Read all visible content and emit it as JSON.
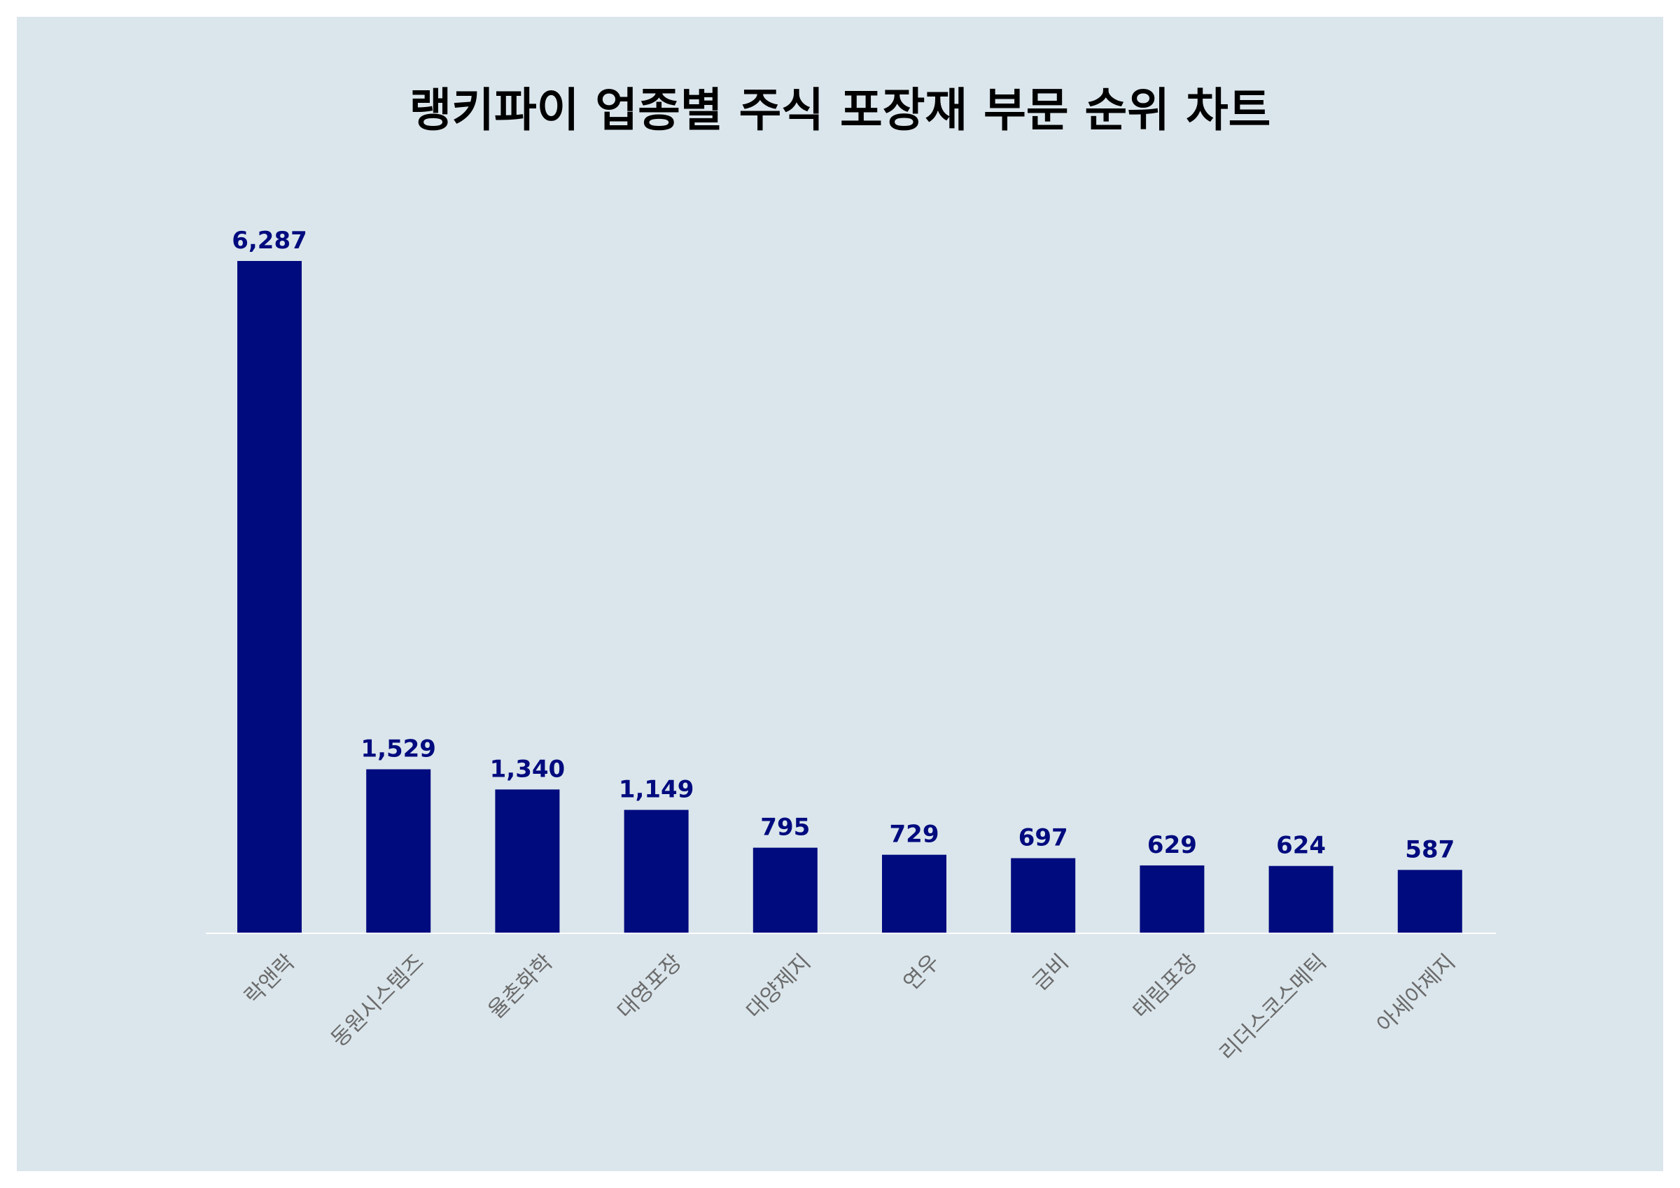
{
  "chart_data": {
    "type": "bar",
    "title": "랭키파이 업종별 주식 포장재 부문 순위 차트",
    "categories": [
      "락앤락",
      "동원시스템즈",
      "율촌화학",
      "대영포장",
      "대양제지",
      "연우",
      "금비",
      "태림포장",
      "리더스코스메틱",
      "아세아제지"
    ],
    "values": [
      6287,
      1529,
      1340,
      1149,
      795,
      729,
      697,
      629,
      624,
      587
    ],
    "value_labels": [
      "6,287",
      "1,529",
      "1,340",
      "1,149",
      "795",
      "729",
      "697",
      "629",
      "624",
      "587"
    ],
    "xlabel": "",
    "ylabel": "",
    "ylim": [
      0,
      6287
    ],
    "grid": false,
    "legend": "none",
    "colors": {
      "bar": "#000b7e",
      "value_label": "#000b7e",
      "background": "#dbe6ec",
      "baseline": "#ffffff",
      "tick_label": "#6b6b6b"
    }
  }
}
